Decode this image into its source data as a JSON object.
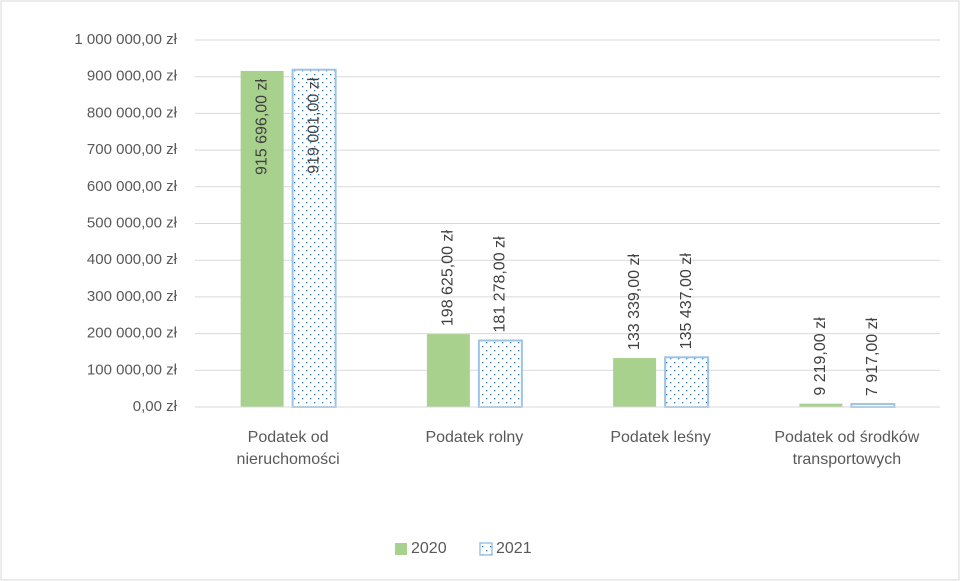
{
  "chart_data": {
    "type": "bar",
    "categories": [
      "Podatek od nieruchomości",
      "Podatek rolny",
      "Podatek leśny",
      "Podatek od środków transportowych"
    ],
    "series": [
      {
        "name": "2020",
        "color": "#a9d18e",
        "values": [
          915696,
          198625,
          133339,
          9219
        ],
        "value_labels": [
          "915 696,00 zł",
          "198 625,00 zł",
          "133 339,00 zł",
          "9 219,00 zł"
        ]
      },
      {
        "name": "2021",
        "color": "#9dc3e6",
        "values": [
          919001,
          181278,
          135437,
          7917
        ],
        "value_labels": [
          "919 001,00 zł",
          "181 278,00 zł",
          "135 437,00 zł",
          "7 917,00 zł"
        ]
      }
    ],
    "ylim": [
      0,
      1000000
    ],
    "yticks": [
      {
        "value": 0,
        "label": "0,00 zł"
      },
      {
        "value": 100000,
        "label": "100 000,00 zł"
      },
      {
        "value": 200000,
        "label": "200 000,00 zł"
      },
      {
        "value": 300000,
        "label": "300 000,00 zł"
      },
      {
        "value": 400000,
        "label": "400 000,00 zł"
      },
      {
        "value": 500000,
        "label": "500 000,00 zł"
      },
      {
        "value": 600000,
        "label": "600 000,00 zł"
      },
      {
        "value": 700000,
        "label": "700 000,00 zł"
      },
      {
        "value": 800000,
        "label": "800 000,00 zł"
      },
      {
        "value": 900000,
        "label": "900 000,00 zł"
      },
      {
        "value": 1000000,
        "label": "1 000 000,00 zł"
      }
    ],
    "grid": true,
    "legend": "bottom"
  }
}
